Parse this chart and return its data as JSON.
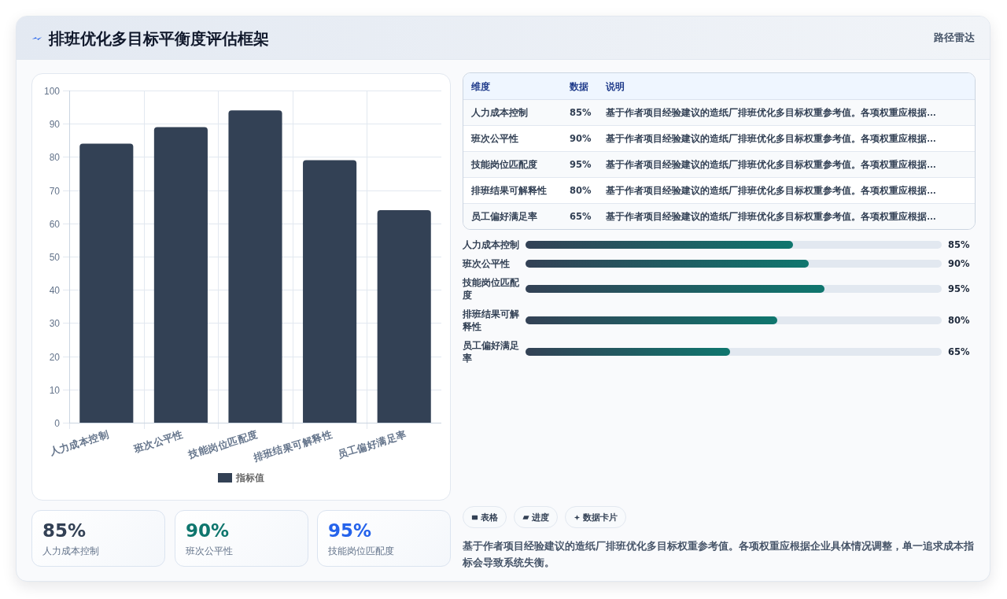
{
  "chart_data": [
    {
      "type": "bar",
      "title": "排班优化多目标平衡度评估框架",
      "annotations": [
        "路径雷达"
      ],
      "categories": [
        "人力成本控制",
        "班次公平性",
        "技能岗位匹配度",
        "排班结果可解释性",
        "员工偏好满足率"
      ],
      "series": [
        {
          "name": "指标值",
          "color": "#334155",
          "values": [
            84,
            89,
            94,
            79,
            64
          ]
        }
      ],
      "ylim": [
        0,
        100
      ],
      "yticks": [
        0,
        10,
        20,
        30,
        40,
        50,
        60,
        70,
        80,
        90,
        100
      ],
      "grid": true,
      "legend": "bottom"
    },
    {
      "type": "other",
      "categories": [
        "人力成本控制",
        "班次公平性",
        "技能岗位匹配度",
        "排班结果可解释性",
        "员工偏好满足率"
      ],
      "value_labels": [
        "85%",
        "90%",
        "95%",
        "80%",
        "65%"
      ],
      "annotations": [
        "维度",
        "数据",
        "说明",
        "基于作者项目经验建议的造纸厂排班优化多目标权重参考值。各项权重应根据…",
        "基于作者项目经验建议的造纸厂排班优化多目标权重参考值。各项权重应根据…",
        "基于作者项目经验建议的造纸厂排班优化多目标权重参考值。各项权重应根据…",
        "基于作者项目经验建议的造纸厂排班优化多目标权重参考值。各项权重应根据…",
        "基于作者项目经验建议的造纸厂排班优化多目标权重参考值。各项权重应根据…"
      ]
    },
    {
      "type": "bar",
      "orientation": "horizontal",
      "categories": [
        "人力成本控制",
        "班次公平性",
        "技能岗位匹配度",
        "排班结果可解释性",
        "员工偏好满足率"
      ],
      "values": [
        85,
        90,
        95,
        80,
        65
      ],
      "value_labels": [
        "85%",
        "90%",
        "95%",
        "80%",
        "65%"
      ],
      "color": "#0f766e"
    },
    {
      "type": "other",
      "annotations": [
        "85%",
        "人力成本控制",
        "90%",
        "班次公平性",
        "95%",
        "技能岗位匹配度"
      ],
      "colors": [
        "#334155",
        "#0f766e",
        "#2563eb"
      ]
    },
    {
      "type": "other",
      "annotations": [
        "表格",
        "进度",
        "数据卡片",
        "基于作者项目经验建议的造纸厂排班优化多目标权重参考值。各项权重应根据企业具体情况调整，单一追求成本指标会导致系统失衡。"
      ]
    }
  ]
}
